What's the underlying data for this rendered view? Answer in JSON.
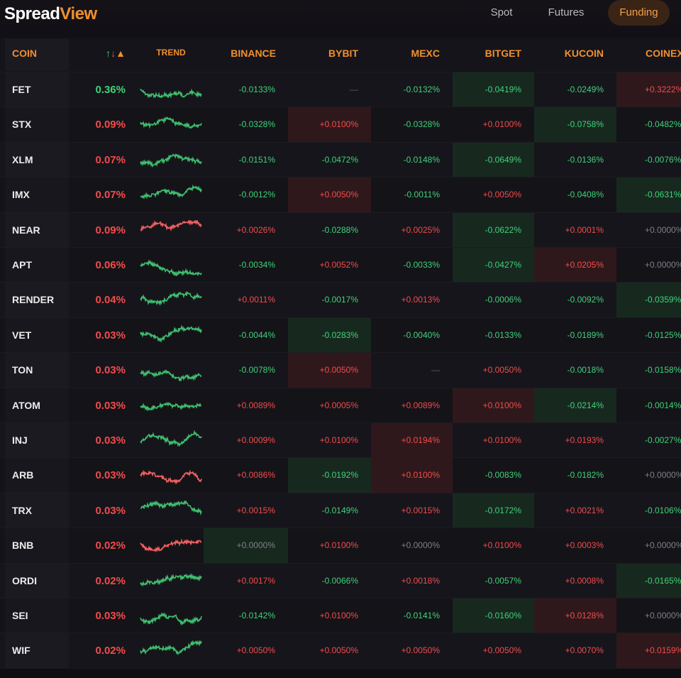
{
  "app": {
    "logo_part1": "Spread",
    "logo_part2": "View"
  },
  "nav": {
    "tabs": [
      "Spot",
      "Futures",
      "Funding"
    ],
    "active": "Funding"
  },
  "colors": {
    "accent": "#f0902e",
    "positive": "#f14c4c",
    "negative": "#3fd27a"
  },
  "table": {
    "headers": {
      "coin": "COIN",
      "sort": "↑↓▲",
      "trend": "TREND",
      "binance": "BINANCE",
      "bybit": "BYBIT",
      "mexc": "MEXC",
      "bitget": "BITGET",
      "kucoin": "KUCOIN",
      "coinex": "COINEX"
    },
    "rows": [
      {
        "coin": "FET",
        "spread": "0.36%",
        "spread_color": "green",
        "trend_color": "green",
        "binance": "-0.0133%",
        "bybit": "—",
        "mexc": "-0.0132%",
        "bitget": "-0.0419%",
        "kucoin": "-0.0249%",
        "coinex": "+0.3222%",
        "hl": {
          "bitget": "green",
          "coinex": "red"
        }
      },
      {
        "coin": "STX",
        "spread": "0.09%",
        "spread_color": "red",
        "trend_color": "green",
        "binance": "-0.0328%",
        "bybit": "+0.0100%",
        "mexc": "-0.0328%",
        "bitget": "+0.0100%",
        "kucoin": "-0.0758%",
        "coinex": "-0.0482%",
        "hl": {
          "bybit": "red",
          "kucoin": "green"
        }
      },
      {
        "coin": "XLM",
        "spread": "0.07%",
        "spread_color": "red",
        "trend_color": "green",
        "binance": "-0.0151%",
        "bybit": "-0.0472%",
        "mexc": "-0.0148%",
        "bitget": "-0.0649%",
        "kucoin": "-0.0136%",
        "coinex": "-0.0076%",
        "hl": {
          "bitget": "green"
        }
      },
      {
        "coin": "IMX",
        "spread": "0.07%",
        "spread_color": "red",
        "trend_color": "green",
        "binance": "-0.0012%",
        "bybit": "+0.0050%",
        "mexc": "-0.0011%",
        "bitget": "+0.0050%",
        "kucoin": "-0.0408%",
        "coinex": "-0.0631%",
        "hl": {
          "bybit": "red",
          "coinex": "green"
        }
      },
      {
        "coin": "NEAR",
        "spread": "0.09%",
        "spread_color": "red",
        "trend_color": "red",
        "binance": "+0.0026%",
        "bybit": "-0.0288%",
        "mexc": "+0.0025%",
        "bitget": "-0.0622%",
        "kucoin": "+0.0001%",
        "coinex": "+0.0000%",
        "hl": {
          "bitget": "green"
        }
      },
      {
        "coin": "APT",
        "spread": "0.06%",
        "spread_color": "red",
        "trend_color": "green",
        "binance": "-0.0034%",
        "bybit": "+0.0052%",
        "mexc": "-0.0033%",
        "bitget": "-0.0427%",
        "kucoin": "+0.0205%",
        "coinex": "+0.0000%",
        "hl": {
          "bitget": "green",
          "kucoin": "red"
        }
      },
      {
        "coin": "RENDER",
        "spread": "0.04%",
        "spread_color": "red",
        "trend_color": "green",
        "binance": "+0.0011%",
        "bybit": "-0.0017%",
        "mexc": "+0.0013%",
        "bitget": "-0.0006%",
        "kucoin": "-0.0092%",
        "coinex": "-0.0359%",
        "hl": {
          "coinex": "green"
        }
      },
      {
        "coin": "VET",
        "spread": "0.03%",
        "spread_color": "red",
        "trend_color": "green",
        "binance": "-0.0044%",
        "bybit": "-0.0283%",
        "mexc": "-0.0040%",
        "bitget": "-0.0133%",
        "kucoin": "-0.0189%",
        "coinex": "-0.0125%",
        "hl": {
          "bybit": "green"
        }
      },
      {
        "coin": "TON",
        "spread": "0.03%",
        "spread_color": "red",
        "trend_color": "green",
        "binance": "-0.0078%",
        "bybit": "+0.0050%",
        "mexc": "—",
        "bitget": "+0.0050%",
        "kucoin": "-0.0018%",
        "coinex": "-0.0158%",
        "hl": {
          "bybit": "red"
        }
      },
      {
        "coin": "ATOM",
        "spread": "0.03%",
        "spread_color": "red",
        "trend_color": "green",
        "binance": "+0.0089%",
        "bybit": "+0.0005%",
        "mexc": "+0.0089%",
        "bitget": "+0.0100%",
        "kucoin": "-0.0214%",
        "coinex": "-0.0014%",
        "hl": {
          "bitget": "red",
          "kucoin": "green"
        }
      },
      {
        "coin": "INJ",
        "spread": "0.03%",
        "spread_color": "red",
        "trend_color": "green",
        "binance": "+0.0009%",
        "bybit": "+0.0100%",
        "mexc": "+0.0194%",
        "bitget": "+0.0100%",
        "kucoin": "+0.0193%",
        "coinex": "-0.0027%",
        "hl": {
          "mexc": "red"
        }
      },
      {
        "coin": "ARB",
        "spread": "0.03%",
        "spread_color": "red",
        "trend_color": "red",
        "binance": "+0.0086%",
        "bybit": "-0.0192%",
        "mexc": "+0.0100%",
        "bitget": "-0.0083%",
        "kucoin": "-0.0182%",
        "coinex": "+0.0000%",
        "hl": {
          "bybit": "green",
          "mexc": "red"
        }
      },
      {
        "coin": "TRX",
        "spread": "0.03%",
        "spread_color": "red",
        "trend_color": "green",
        "binance": "+0.0015%",
        "bybit": "-0.0149%",
        "mexc": "+0.0015%",
        "bitget": "-0.0172%",
        "kucoin": "+0.0021%",
        "coinex": "-0.0106%",
        "hl": {
          "bitget": "green"
        }
      },
      {
        "coin": "BNB",
        "spread": "0.02%",
        "spread_color": "red",
        "trend_color": "red",
        "binance": "+0.0000%",
        "bybit": "+0.0100%",
        "mexc": "+0.0000%",
        "bitget": "+0.0100%",
        "kucoin": "+0.0003%",
        "coinex": "+0.0000%",
        "hl": {
          "binance": "green"
        }
      },
      {
        "coin": "ORDI",
        "spread": "0.02%",
        "spread_color": "red",
        "trend_color": "green",
        "binance": "+0.0017%",
        "bybit": "-0.0066%",
        "mexc": "+0.0018%",
        "bitget": "-0.0057%",
        "kucoin": "+0.0008%",
        "coinex": "-0.0165%",
        "hl": {
          "coinex": "green"
        }
      },
      {
        "coin": "SEI",
        "spread": "0.03%",
        "spread_color": "red",
        "trend_color": "green",
        "binance": "-0.0142%",
        "bybit": "+0.0100%",
        "mexc": "-0.0141%",
        "bitget": "-0.0160%",
        "kucoin": "+0.0128%",
        "coinex": "+0.0000%",
        "hl": {
          "bitget": "green",
          "kucoin": "red"
        }
      },
      {
        "coin": "WIF",
        "spread": "0.02%",
        "spread_color": "red",
        "trend_color": "green",
        "binance": "+0.0050%",
        "bybit": "+0.0050%",
        "mexc": "+0.0050%",
        "bitget": "+0.0050%",
        "kucoin": "+0.0070%",
        "coinex": "+0.0159%",
        "hl": {
          "coinex": "red"
        }
      }
    ]
  }
}
